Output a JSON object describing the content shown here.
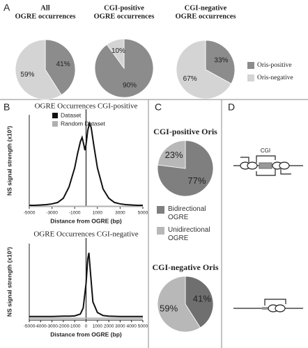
{
  "panel_labels": [
    "A",
    "B",
    "C",
    "D"
  ],
  "diagram_label": "CGI",
  "chart_data": [
    {
      "type": "pie",
      "title": [
        "All",
        "OGRE occurrences"
      ],
      "categories": [
        "Oris-positive",
        "Oris-negative"
      ],
      "values": [
        41,
        59
      ],
      "value_labels": [
        "41%",
        "59%"
      ],
      "colors": [
        "#8c8c8c",
        "#d4d4d4"
      ],
      "legend": false
    },
    {
      "type": "pie",
      "title": [
        "CGI-positive",
        "OGRE occurrences"
      ],
      "categories": [
        "Oris-positive",
        "Oris-negative"
      ],
      "values": [
        90,
        10
      ],
      "value_labels": [
        "90%",
        "10%"
      ],
      "colors": [
        "#8c8c8c",
        "#d4d4d4"
      ],
      "legend": false
    },
    {
      "type": "pie",
      "title": [
        "CGI-negative",
        "OGRE occurrences"
      ],
      "categories": [
        "Oris-positive",
        "Oris-negative"
      ],
      "values": [
        33,
        67
      ],
      "value_labels": [
        "33%",
        "67%"
      ],
      "colors": [
        "#8c8c8c",
        "#d4d4d4"
      ],
      "legend": true
    },
    {
      "type": "line",
      "title": "OGRE Occurrences CGI-positive",
      "x_label": "Distance from OGRE (bp)",
      "y_label": "NS signal strength (x10³)",
      "xlim": [
        -5000,
        5000
      ],
      "xticks": [
        -5000,
        -3000,
        -1000,
        1000,
        3000,
        5000
      ],
      "ylim": [
        0,
        130
      ],
      "legend": true,
      "x": [
        -5000,
        -4500,
        -4000,
        -3500,
        -3000,
        -2500,
        -2000,
        -1500,
        -1000,
        -750,
        -500,
        -350,
        -200,
        -100,
        0,
        150,
        300,
        450,
        700,
        1000,
        1500,
        2000,
        2500,
        3000,
        3500,
        4000,
        4500,
        5000
      ],
      "series": [
        {
          "name": "Dataset",
          "color": "#111111",
          "values": [
            2,
            2,
            2.5,
            3,
            4,
            6,
            12,
            28,
            55,
            75,
            92,
            98,
            88,
            80,
            88,
            108,
            118,
            112,
            85,
            55,
            25,
            12,
            6,
            4,
            3,
            2.5,
            2,
            2
          ]
        },
        {
          "name": "Random Dataset",
          "color": "#b0b0b0",
          "values": [
            0.5,
            0.5,
            0.5,
            0.5,
            0.5,
            0.5,
            0.5,
            0.5,
            0.5,
            0.5,
            0.5,
            0.5,
            0.5,
            0.5,
            0.5,
            0.5,
            0.5,
            0.5,
            0.5,
            0.5,
            0.5,
            0.5,
            0.5,
            0.5,
            0.5,
            0.5,
            0.5,
            0.5
          ]
        }
      ]
    },
    {
      "type": "line",
      "title": "OGRE Occurrences CGI-negative",
      "x_label": "Distance from OGRE (bp)",
      "y_label": "NS signal strength (x10³)",
      "xlim": [
        -5000,
        5000
      ],
      "xticks": [
        -5000,
        -4000,
        -3000,
        -2000,
        -1000,
        0,
        1000,
        2000,
        3000,
        4000,
        5000
      ],
      "ylim": [
        0,
        250
      ],
      "legend": false,
      "x": [
        -5000,
        -4000,
        -3000,
        -2000,
        -1500,
        -1000,
        -500,
        -250,
        0,
        150,
        250,
        400,
        600,
        1000,
        1500,
        2000,
        3000,
        4000,
        5000
      ],
      "series": [
        {
          "name": "Dataset",
          "color": "#111111",
          "values": [
            12,
            12,
            12,
            13,
            13,
            14,
            20,
            40,
            120,
            200,
            220,
            150,
            60,
            25,
            15,
            13,
            12,
            12,
            12
          ]
        },
        {
          "name": "Random Dataset",
          "color": "#b0b0b0",
          "values": [
            6,
            6,
            6,
            6,
            6,
            6,
            6,
            6,
            6,
            6,
            6,
            6,
            6,
            6,
            6,
            6,
            6,
            6,
            6
          ]
        }
      ]
    },
    {
      "type": "pie",
      "title": [
        "CGI-positive Oris"
      ],
      "categories": [
        "Bidirectional OGRE",
        "Unidirectional OGRE"
      ],
      "values": [
        77,
        23
      ],
      "value_labels": [
        "77%",
        "23%"
      ],
      "colors": [
        "#7f7f7f",
        "#b8b8b8"
      ],
      "legend": true
    },
    {
      "type": "pie",
      "title": [
        "CGI-negative Oris"
      ],
      "categories": [
        "Bidirectional OGRE",
        "Unidirectional OGRE"
      ],
      "values": [
        41,
        59
      ],
      "value_labels": [
        "41%",
        "59%"
      ],
      "colors": [
        "#6f6f6f",
        "#b8b8b8"
      ],
      "legend": false
    }
  ]
}
